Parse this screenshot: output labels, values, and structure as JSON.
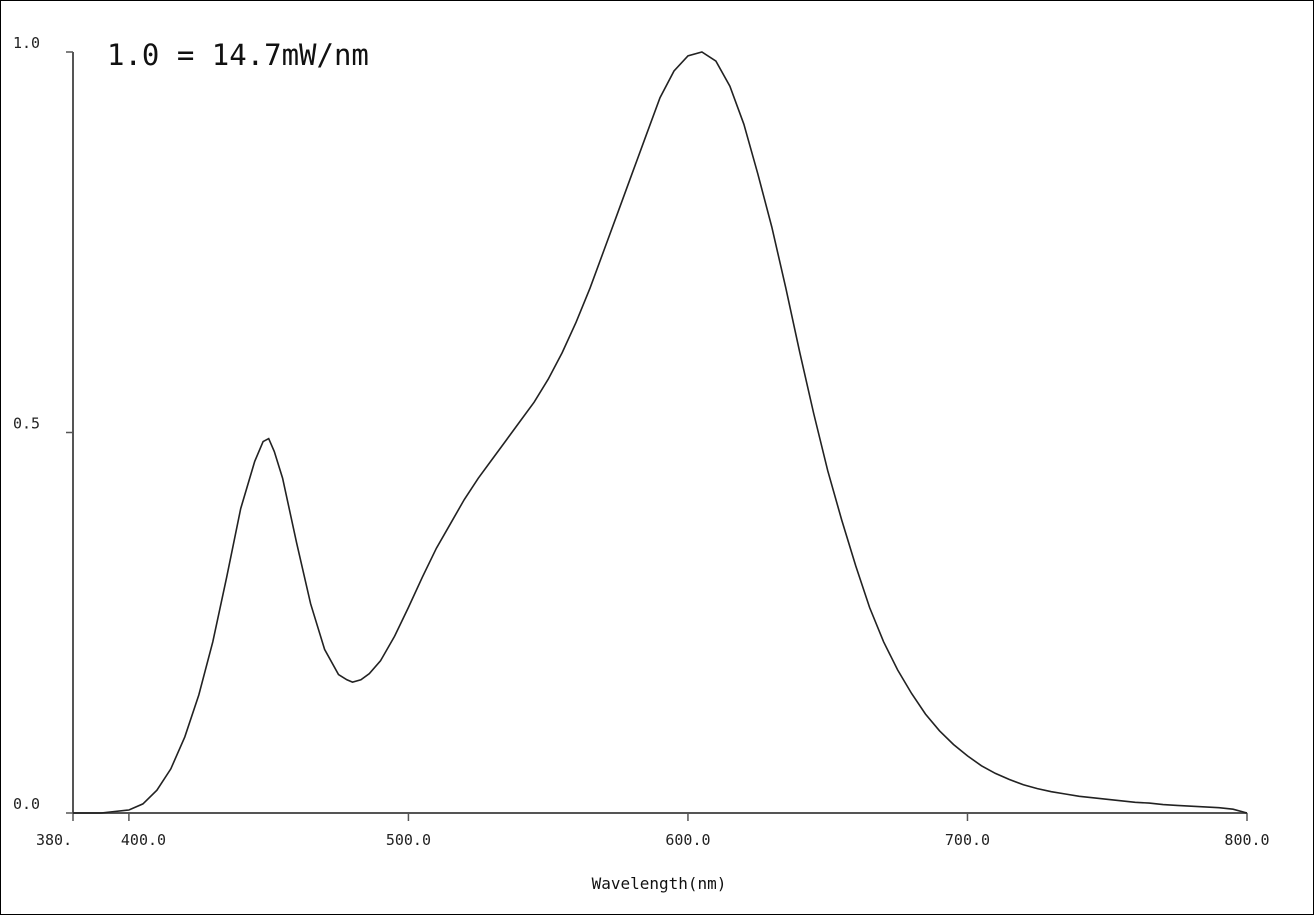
{
  "chart_data": {
    "type": "line",
    "title": "",
    "annotation": "1.0 = 14.7mW/nm",
    "xlabel": "Wavelength(nm)",
    "ylabel": "",
    "xlim": [
      380,
      800
    ],
    "ylim": [
      0,
      1.0
    ],
    "grid": false,
    "legend": "none",
    "line_color": "#222222",
    "axis_color": "#555555",
    "x_ticks": [
      {
        "value": 380,
        "label": "380."
      },
      {
        "value": 400,
        "label": "400.0"
      },
      {
        "value": 500,
        "label": "500.0"
      },
      {
        "value": 600,
        "label": "600.0"
      },
      {
        "value": 700,
        "label": "700.0"
      },
      {
        "value": 800,
        "label": "800.0"
      }
    ],
    "y_ticks": [
      {
        "value": 0.0,
        "label": "0.0"
      },
      {
        "value": 0.5,
        "label": "0.5"
      },
      {
        "value": 1.0,
        "label": "1.0"
      }
    ],
    "series": [
      {
        "x": [
          380,
          390,
          400,
          405,
          410,
          415,
          420,
          425,
          430,
          435,
          440,
          445,
          448,
          450,
          452,
          455,
          460,
          465,
          470,
          475,
          478,
          480,
          483,
          486,
          490,
          495,
          500,
          505,
          510,
          515,
          520,
          525,
          530,
          535,
          540,
          545,
          550,
          555,
          560,
          565,
          570,
          575,
          580,
          585,
          590,
          595,
          600,
          605,
          610,
          615,
          620,
          625,
          630,
          635,
          640,
          645,
          650,
          655,
          660,
          665,
          670,
          675,
          680,
          685,
          690,
          695,
          700,
          705,
          710,
          715,
          720,
          725,
          730,
          735,
          740,
          745,
          750,
          755,
          760,
          765,
          770,
          775,
          780,
          785,
          790,
          795,
          800
        ],
        "y": [
          0.0,
          0.0,
          0.004,
          0.012,
          0.03,
          0.058,
          0.1,
          0.155,
          0.225,
          0.31,
          0.4,
          0.462,
          0.488,
          0.492,
          0.475,
          0.44,
          0.355,
          0.275,
          0.215,
          0.182,
          0.175,
          0.172,
          0.175,
          0.183,
          0.2,
          0.232,
          0.27,
          0.31,
          0.348,
          0.38,
          0.412,
          0.44,
          0.465,
          0.49,
          0.515,
          0.54,
          0.57,
          0.605,
          0.645,
          0.69,
          0.74,
          0.79,
          0.84,
          0.89,
          0.94,
          0.975,
          0.995,
          1.0,
          0.988,
          0.955,
          0.905,
          0.84,
          0.77,
          0.69,
          0.605,
          0.525,
          0.45,
          0.385,
          0.325,
          0.27,
          0.225,
          0.188,
          0.157,
          0.13,
          0.108,
          0.09,
          0.075,
          0.062,
          0.052,
          0.044,
          0.037,
          0.032,
          0.028,
          0.025,
          0.022,
          0.02,
          0.018,
          0.016,
          0.014,
          0.013,
          0.011,
          0.01,
          0.009,
          0.008,
          0.007,
          0.005,
          0.0
        ]
      }
    ]
  }
}
